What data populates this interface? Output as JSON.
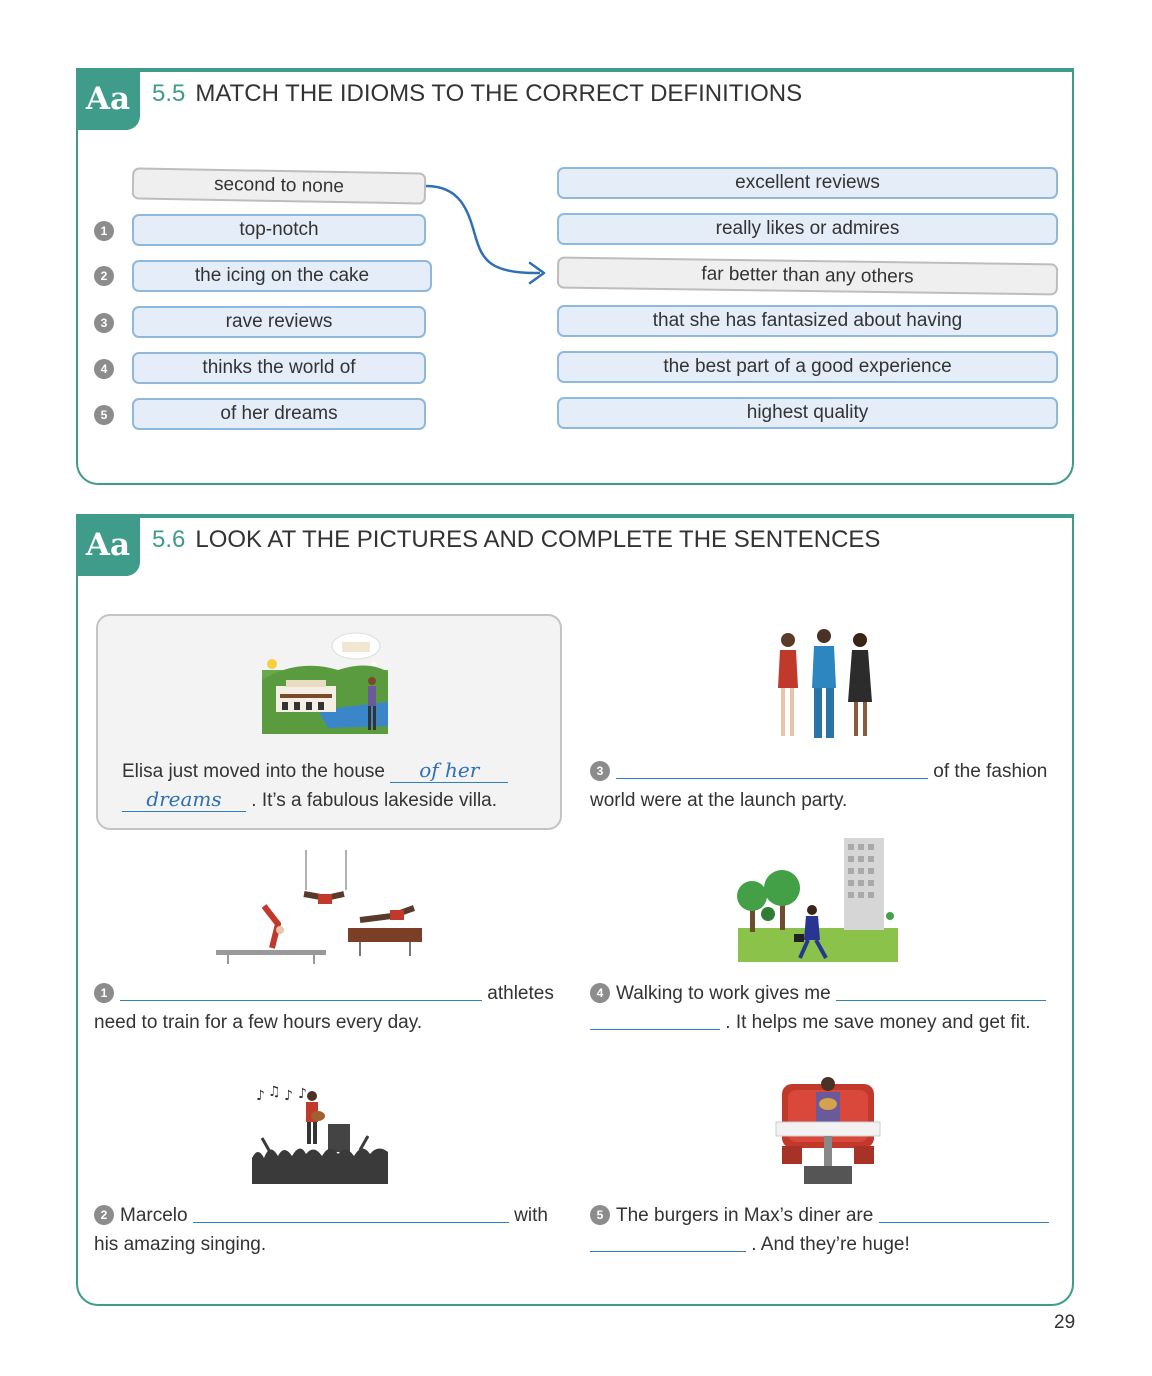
{
  "ex55": {
    "icon": "Aa",
    "number": "5.5",
    "title": "MATCH THE IDIOMS TO THE CORRECT DEFINITIONS",
    "example_idiom": "second to none",
    "idioms": [
      {
        "num": "1",
        "text": "top-notch"
      },
      {
        "num": "2",
        "text": "the icing on the cake"
      },
      {
        "num": "3",
        "text": "rave reviews"
      },
      {
        "num": "4",
        "text": "thinks the world of"
      },
      {
        "num": "5",
        "text": "of her dreams"
      }
    ],
    "definitions": [
      "excellent reviews",
      "really likes or admires",
      "far better than any others",
      "that she has fantasized about having",
      "the best part of a good experience",
      "highest quality"
    ]
  },
  "ex56": {
    "icon": "Aa",
    "number": "5.6",
    "title": "LOOK AT THE PICTURES AND COMPLETE THE SENTENCES",
    "example": {
      "before": "Elisa just moved into the house",
      "answer_part1": "of her",
      "answer_part2": "dreams",
      "after": ". It’s a fabulous lakeside villa."
    },
    "items": [
      {
        "num": "1",
        "line1_after": "athletes",
        "line2": "need to train for a few hours every day."
      },
      {
        "num": "2",
        "line1_before": "Marcelo",
        "line1_after": "with",
        "line2": "his amazing singing."
      },
      {
        "num": "3",
        "line1_after": "of the fashion",
        "line2": "world were at the launch party."
      },
      {
        "num": "4",
        "line1_before": "Walking to work gives me",
        "line2_after": ". It helps me save money and get fit."
      },
      {
        "num": "5",
        "line1_before": "The burgers in Max’s diner are",
        "line2_after": ". And they’re huge!"
      }
    ]
  },
  "page_number": "29",
  "colors": {
    "accent": "#3f9c8a",
    "pill_blue": "#e4edf8",
    "pill_border": "#8fb8dd",
    "ink_blue": "#2f6fb5"
  }
}
